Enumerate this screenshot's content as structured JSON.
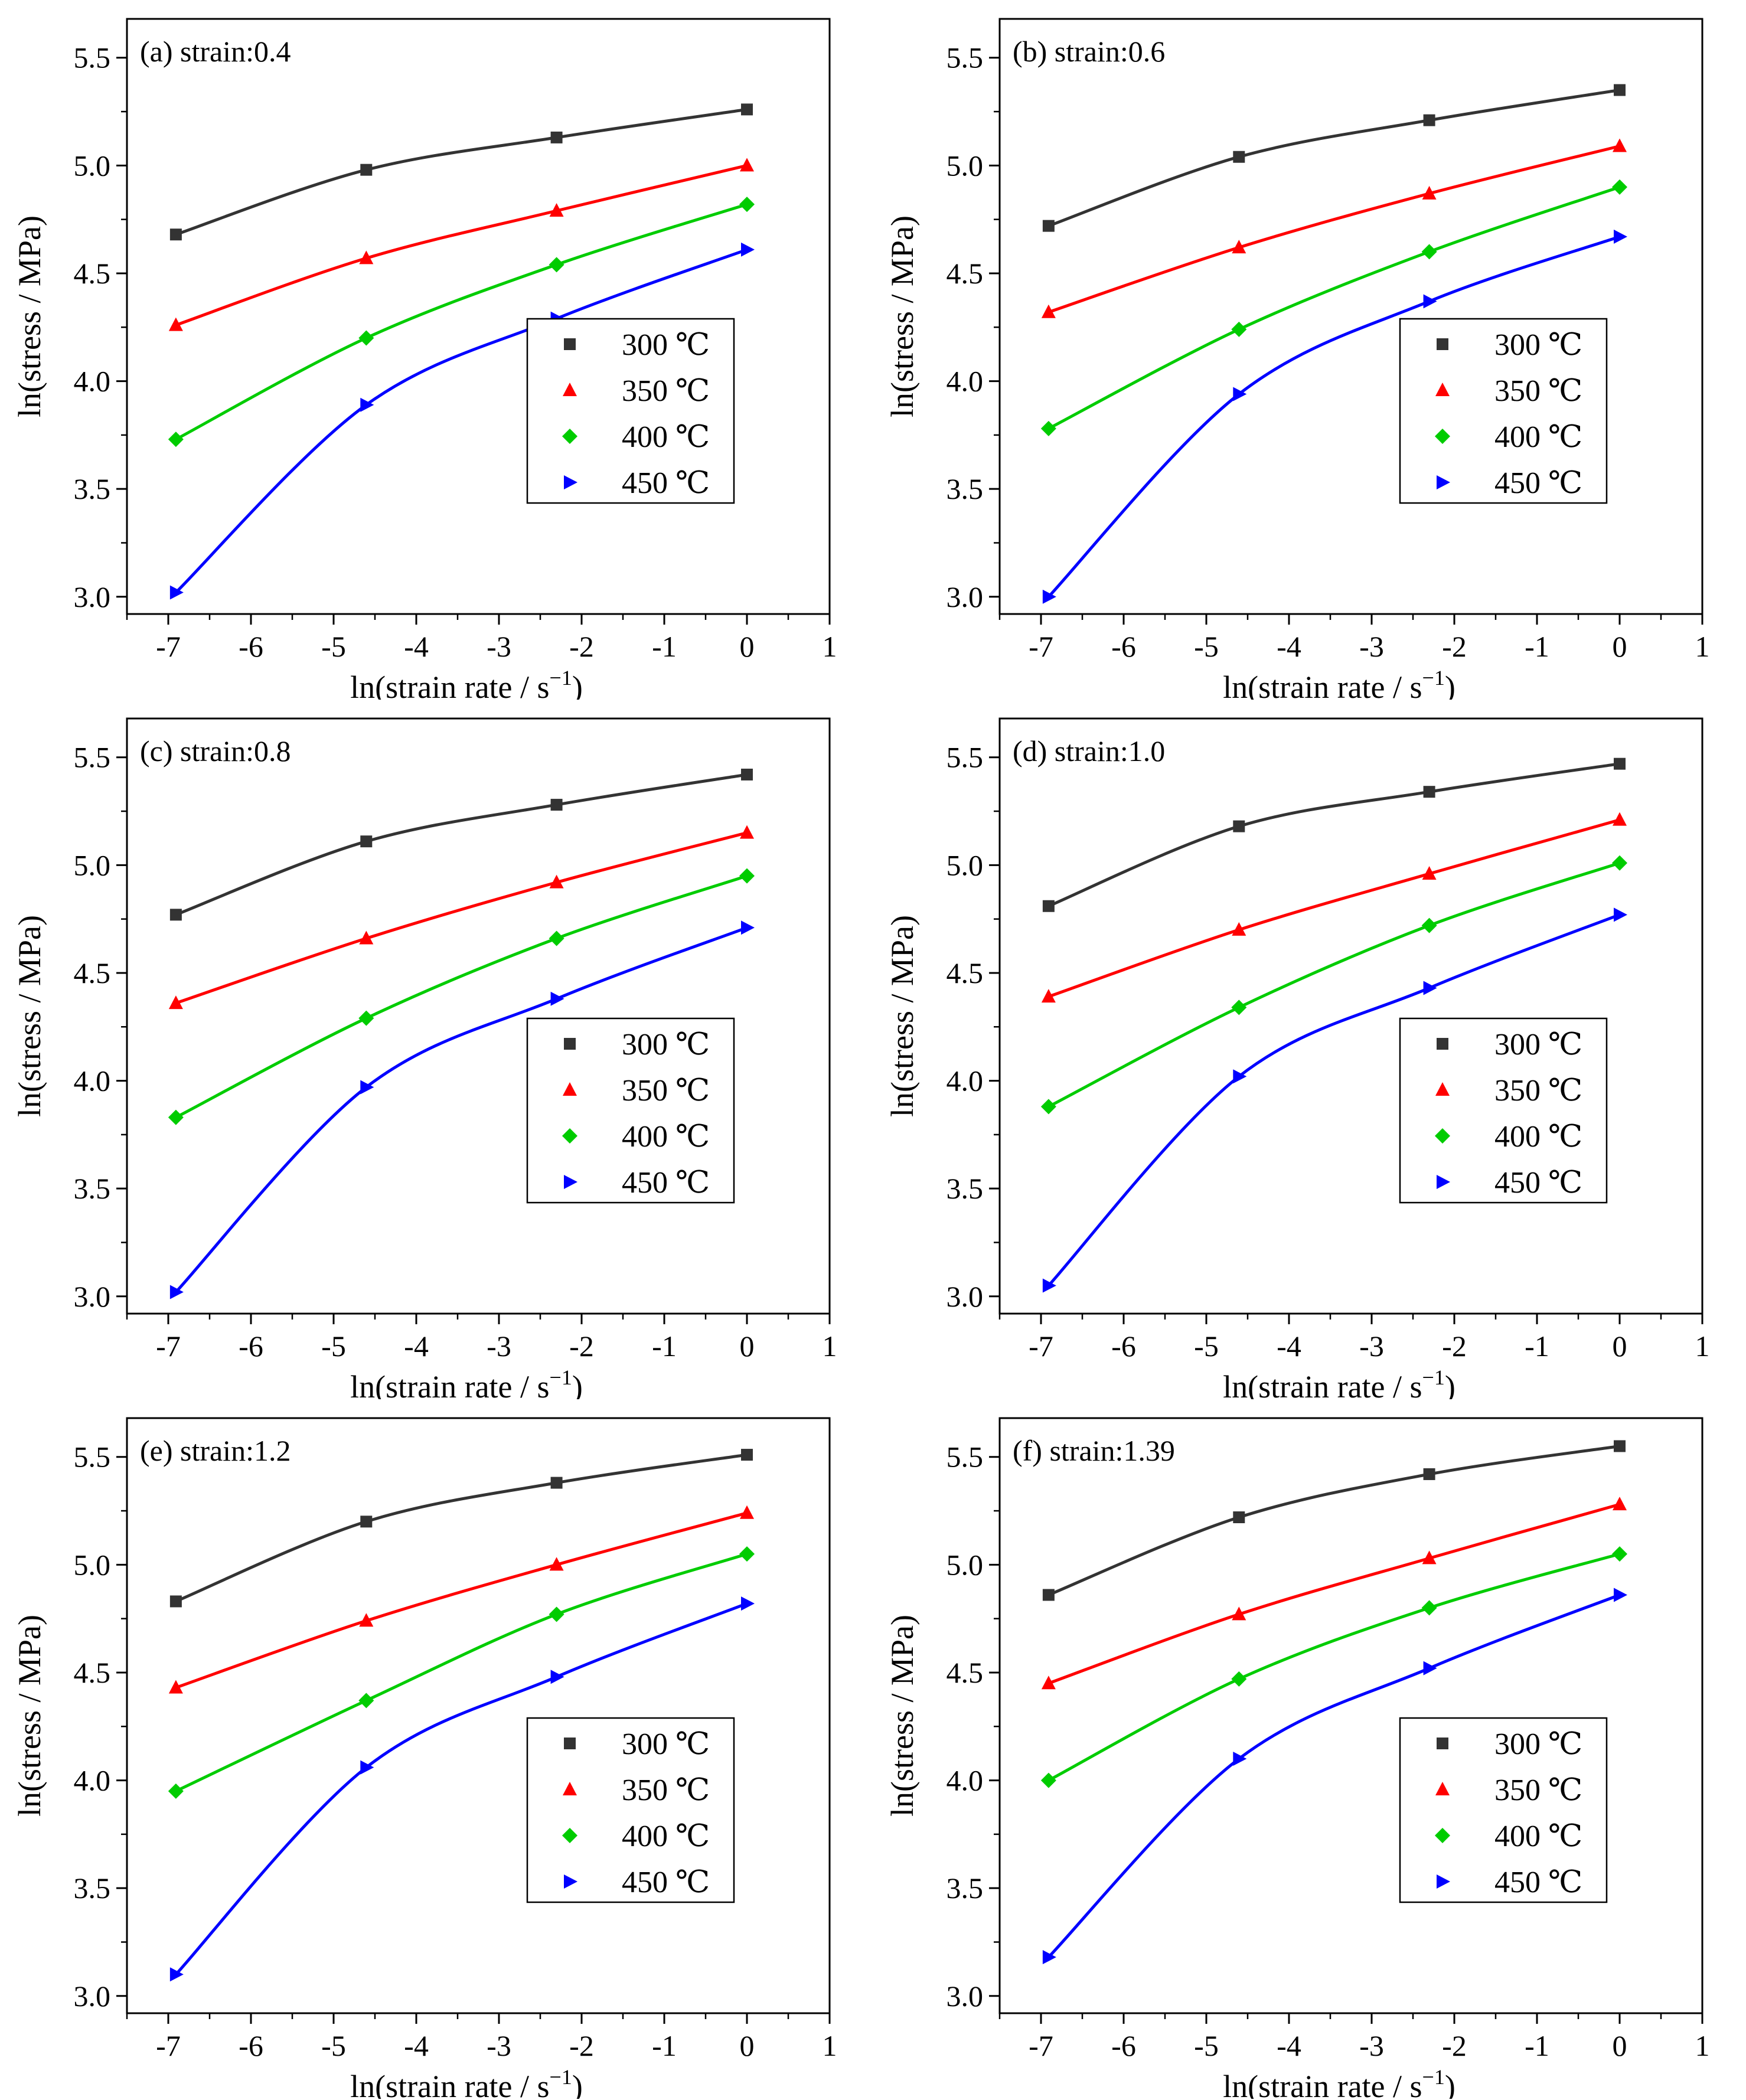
{
  "chart_data": [
    {
      "type": "line",
      "title": "(a) strain:0.4",
      "xlabel": "ln(strain rate / s",
      "xlabel_sup": "−1",
      "xlabel_end": ")",
      "ylabel": "ln(stress / MPa)",
      "xlim": [
        -7.5,
        1
      ],
      "ylim": [
        2.92,
        5.68
      ],
      "x_ticks": [
        -7,
        -6,
        -5,
        -4,
        -3,
        -2,
        -1,
        0,
        1
      ],
      "y_ticks": [
        3.0,
        3.5,
        4.0,
        4.5,
        5.0,
        5.5
      ],
      "x": [
        -6.908,
        -4.605,
        -2.303,
        0
      ],
      "series": [
        {
          "name": "300 ℃",
          "color": "#333333",
          "marker": "square",
          "values": [
            4.68,
            4.98,
            5.13,
            5.26
          ]
        },
        {
          "name": "350 ℃",
          "color": "#ff0000",
          "marker": "triangle-up",
          "values": [
            4.26,
            4.57,
            4.79,
            5.0
          ]
        },
        {
          "name": "400 ℃",
          "color": "#00cc00",
          "marker": "diamond",
          "values": [
            3.73,
            4.2,
            4.54,
            4.82
          ]
        },
        {
          "name": "450 ℃",
          "color": "#0000ff",
          "marker": "triangle-right",
          "values": [
            3.02,
            3.89,
            4.29,
            4.61
          ]
        }
      ]
    },
    {
      "type": "line",
      "title": "(b) strain:0.6",
      "xlabel": "ln(strain rate / s",
      "xlabel_sup": "−1",
      "xlabel_end": ")",
      "ylabel": "ln(stress / MPa)",
      "xlim": [
        -7.5,
        1
      ],
      "ylim": [
        2.92,
        5.68
      ],
      "x_ticks": [
        -7,
        -6,
        -5,
        -4,
        -3,
        -2,
        -1,
        0,
        1
      ],
      "y_ticks": [
        3.0,
        3.5,
        4.0,
        4.5,
        5.0,
        5.5
      ],
      "x": [
        -6.908,
        -4.605,
        -2.303,
        0
      ],
      "series": [
        {
          "name": "300 ℃",
          "color": "#333333",
          "marker": "square",
          "values": [
            4.72,
            5.04,
            5.21,
            5.35
          ]
        },
        {
          "name": "350 ℃",
          "color": "#ff0000",
          "marker": "triangle-up",
          "values": [
            4.32,
            4.62,
            4.87,
            5.09
          ]
        },
        {
          "name": "400 ℃",
          "color": "#00cc00",
          "marker": "diamond",
          "values": [
            3.78,
            4.24,
            4.6,
            4.9
          ]
        },
        {
          "name": "450 ℃",
          "color": "#0000ff",
          "marker": "triangle-right",
          "values": [
            3.0,
            3.94,
            4.37,
            4.67
          ]
        }
      ]
    },
    {
      "type": "line",
      "title": "(c) strain:0.8",
      "xlabel": "ln(strain rate / s",
      "xlabel_sup": "−1",
      "xlabel_end": ")",
      "ylabel": "ln(stress / MPa)",
      "xlim": [
        -7.5,
        1
      ],
      "ylim": [
        2.92,
        5.68
      ],
      "x_ticks": [
        -7,
        -6,
        -5,
        -4,
        -3,
        -2,
        -1,
        0,
        1
      ],
      "y_ticks": [
        3.0,
        3.5,
        4.0,
        4.5,
        5.0,
        5.5
      ],
      "x": [
        -6.908,
        -4.605,
        -2.303,
        0
      ],
      "series": [
        {
          "name": "300 ℃",
          "color": "#333333",
          "marker": "square",
          "values": [
            4.77,
            5.11,
            5.28,
            5.42
          ]
        },
        {
          "name": "350 ℃",
          "color": "#ff0000",
          "marker": "triangle-up",
          "values": [
            4.36,
            4.66,
            4.92,
            5.15
          ]
        },
        {
          "name": "400 ℃",
          "color": "#00cc00",
          "marker": "diamond",
          "values": [
            3.83,
            4.29,
            4.66,
            4.95
          ]
        },
        {
          "name": "450 ℃",
          "color": "#0000ff",
          "marker": "triangle-right",
          "values": [
            3.02,
            3.97,
            4.38,
            4.71
          ]
        }
      ]
    },
    {
      "type": "line",
      "title": "(d) strain:1.0",
      "xlabel": "ln(strain rate / s",
      "xlabel_sup": "−1",
      "xlabel_end": ")",
      "ylabel": "ln(stress / MPa)",
      "xlim": [
        -7.5,
        1
      ],
      "ylim": [
        2.92,
        5.68
      ],
      "x_ticks": [
        -7,
        -6,
        -5,
        -4,
        -3,
        -2,
        -1,
        0,
        1
      ],
      "y_ticks": [
        3.0,
        3.5,
        4.0,
        4.5,
        5.0,
        5.5
      ],
      "x": [
        -6.908,
        -4.605,
        -2.303,
        0
      ],
      "series": [
        {
          "name": "300 ℃",
          "color": "#333333",
          "marker": "square",
          "values": [
            4.81,
            5.18,
            5.34,
            5.47
          ]
        },
        {
          "name": "350 ℃",
          "color": "#ff0000",
          "marker": "triangle-up",
          "values": [
            4.39,
            4.7,
            4.96,
            5.21
          ]
        },
        {
          "name": "400 ℃",
          "color": "#00cc00",
          "marker": "diamond",
          "values": [
            3.88,
            4.34,
            4.72,
            5.01
          ]
        },
        {
          "name": "450 ℃",
          "color": "#0000ff",
          "marker": "triangle-right",
          "values": [
            3.05,
            4.02,
            4.43,
            4.77
          ]
        }
      ]
    },
    {
      "type": "line",
      "title": "(e) strain:1.2",
      "xlabel": "ln(strain rate / s",
      "xlabel_sup": "−1",
      "xlabel_end": ")",
      "ylabel": "ln(stress / MPa)",
      "xlim": [
        -7.5,
        1
      ],
      "ylim": [
        2.92,
        5.68
      ],
      "x_ticks": [
        -7,
        -6,
        -5,
        -4,
        -3,
        -2,
        -1,
        0,
        1
      ],
      "y_ticks": [
        3.0,
        3.5,
        4.0,
        4.5,
        5.0,
        5.5
      ],
      "x": [
        -6.908,
        -4.605,
        -2.303,
        0
      ],
      "series": [
        {
          "name": "300 ℃",
          "color": "#333333",
          "marker": "square",
          "values": [
            4.83,
            5.2,
            5.38,
            5.51
          ]
        },
        {
          "name": "350 ℃",
          "color": "#ff0000",
          "marker": "triangle-up",
          "values": [
            4.43,
            4.74,
            5.0,
            5.24
          ]
        },
        {
          "name": "400 ℃",
          "color": "#00cc00",
          "marker": "diamond",
          "values": [
            3.95,
            4.37,
            4.77,
            5.05
          ]
        },
        {
          "name": "450 ℃",
          "color": "#0000ff",
          "marker": "triangle-right",
          "values": [
            3.1,
            4.06,
            4.48,
            4.82
          ]
        }
      ]
    },
    {
      "type": "line",
      "title": "(f) strain:1.39",
      "xlabel": "ln(strain rate / s",
      "xlabel_sup": "−1",
      "xlabel_end": ")",
      "ylabel": "ln(stress / MPa)",
      "xlim": [
        -7.5,
        1
      ],
      "ylim": [
        2.92,
        5.68
      ],
      "x_ticks": [
        -7,
        -6,
        -5,
        -4,
        -3,
        -2,
        -1,
        0,
        1
      ],
      "y_ticks": [
        3.0,
        3.5,
        4.0,
        4.5,
        5.0,
        5.5
      ],
      "x": [
        -6.908,
        -4.605,
        -2.303,
        0
      ],
      "series": [
        {
          "name": "300 ℃",
          "color": "#333333",
          "marker": "square",
          "values": [
            4.86,
            5.22,
            5.42,
            5.55
          ]
        },
        {
          "name": "350 ℃",
          "color": "#ff0000",
          "marker": "triangle-up",
          "values": [
            4.45,
            4.77,
            5.03,
            5.28
          ]
        },
        {
          "name": "400 ℃",
          "color": "#00cc00",
          "marker": "diamond",
          "values": [
            4.0,
            4.47,
            4.8,
            5.05
          ]
        },
        {
          "name": "450 ℃",
          "color": "#0000ff",
          "marker": "triangle-right",
          "values": [
            3.18,
            4.1,
            4.52,
            4.86
          ]
        }
      ]
    }
  ]
}
